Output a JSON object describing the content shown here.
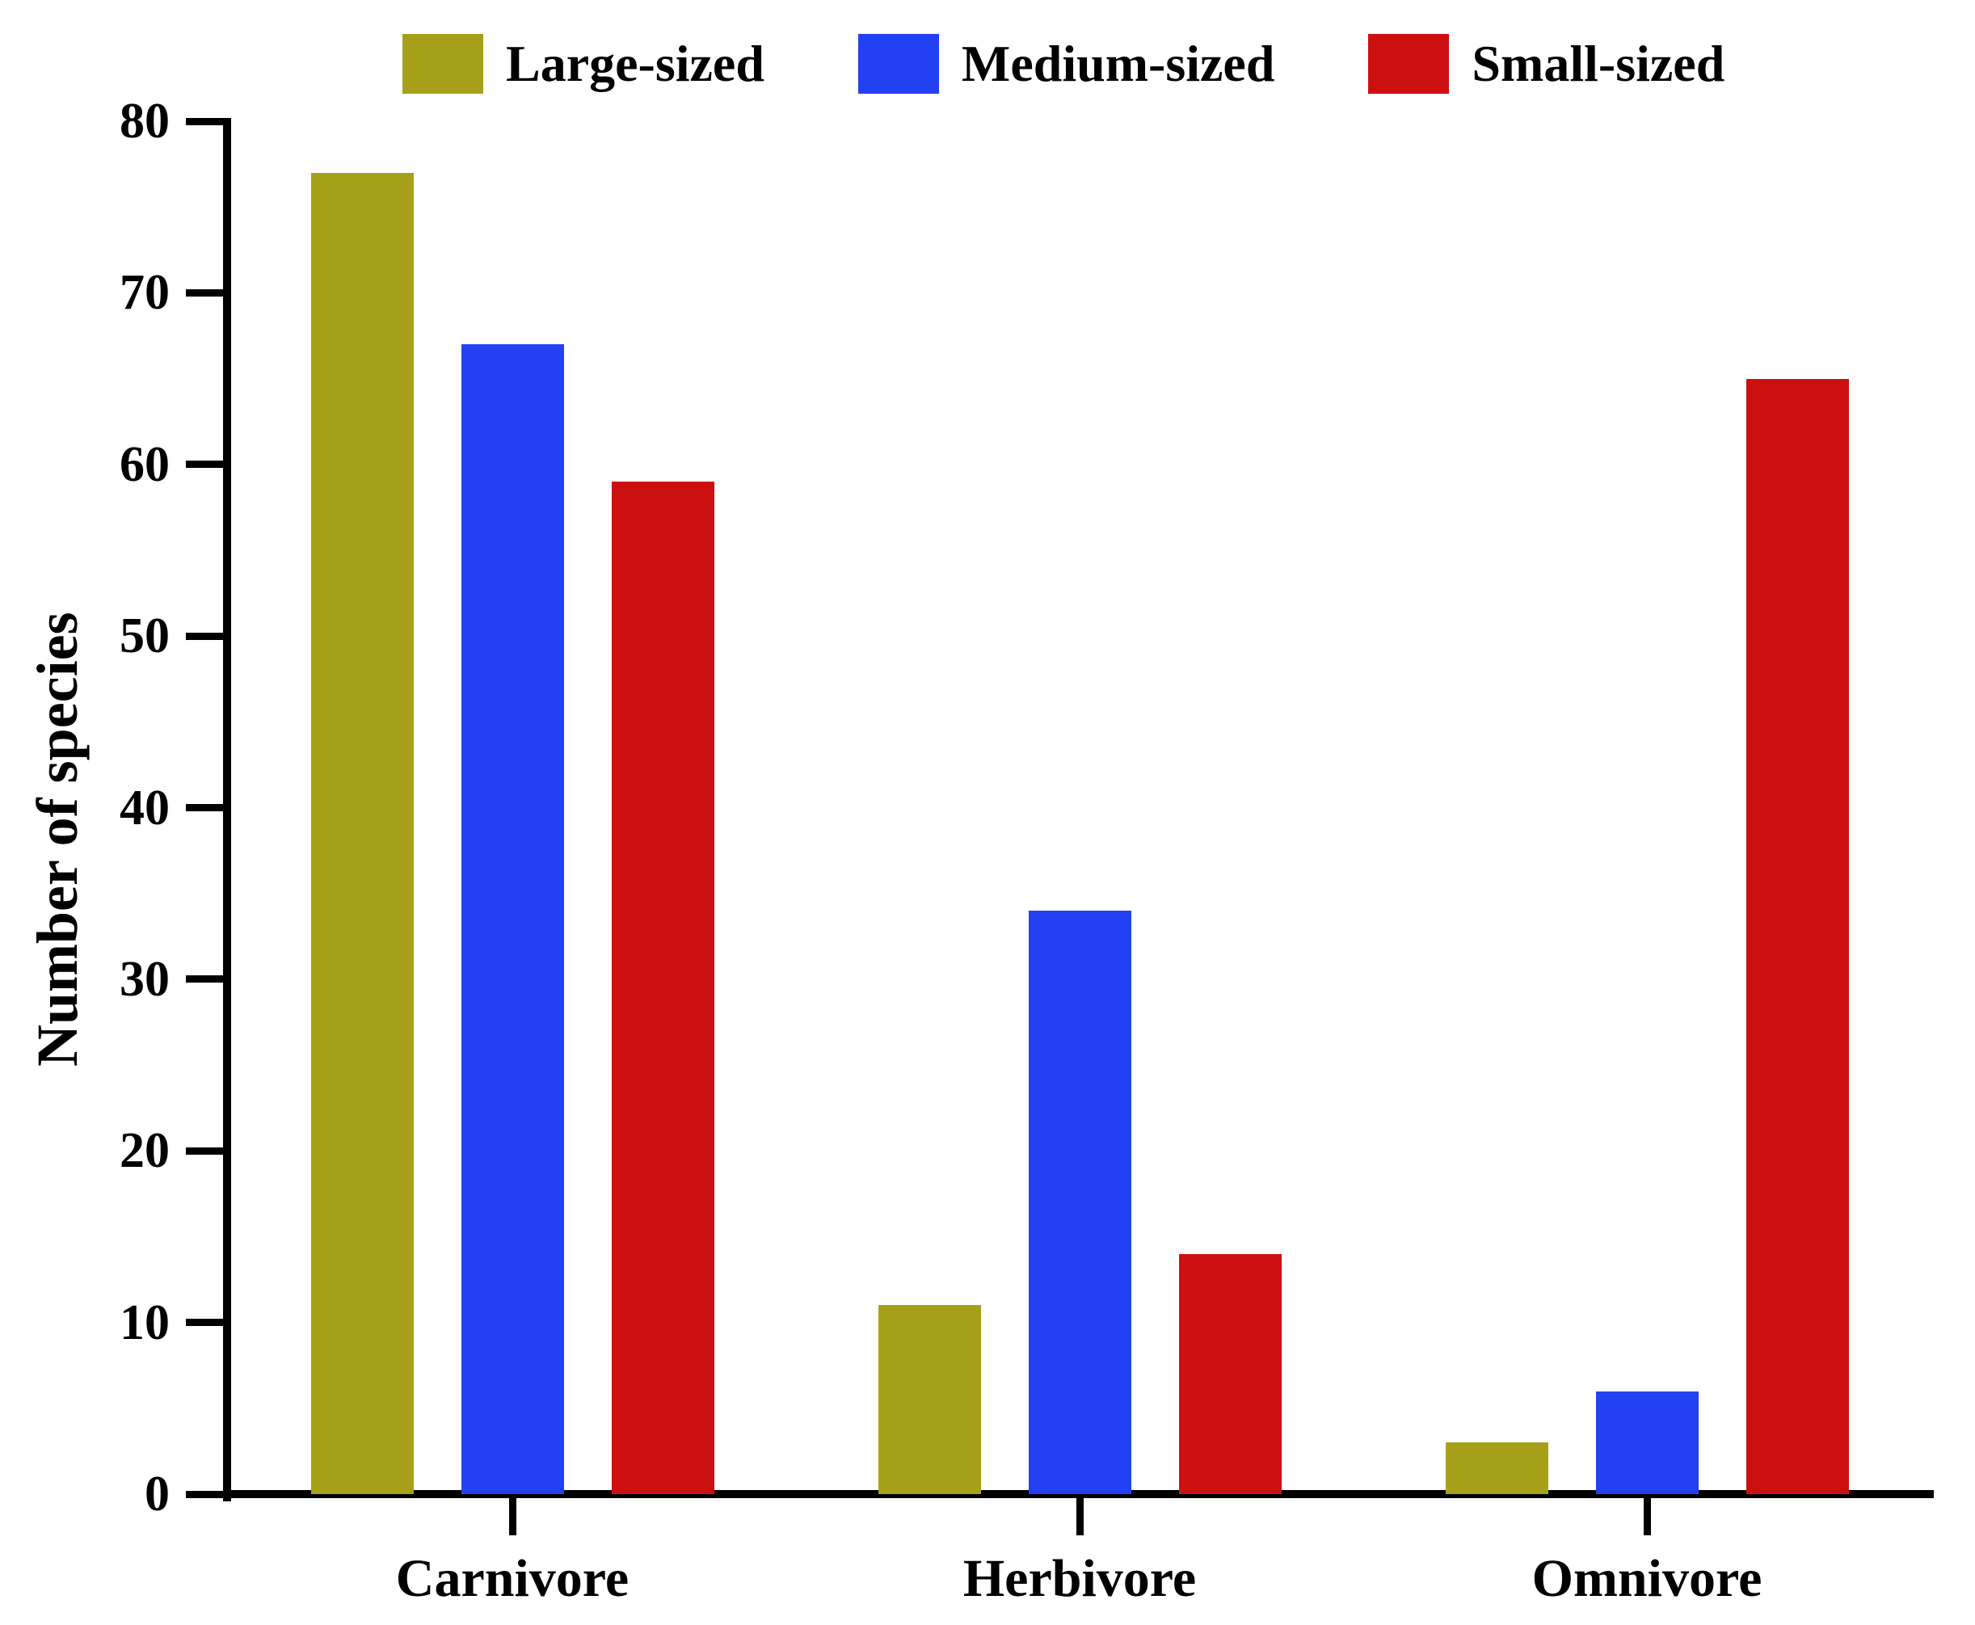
{
  "chart_data": {
    "type": "bar",
    "title": "",
    "xlabel": "",
    "ylabel": "Number of species",
    "ylim": [
      0,
      80
    ],
    "ytick_step": 10,
    "ytick_labels": [
      "0",
      "10",
      "20",
      "30",
      "40",
      "50",
      "60",
      "70",
      "80"
    ],
    "grid": false,
    "legend_position": "top",
    "categories": [
      "Carnivore",
      "Herbivore",
      "Omnivore"
    ],
    "series": [
      {
        "name": "Large-sized",
        "color": "#A6A019",
        "values": [
          77,
          11,
          3
        ]
      },
      {
        "name": "Medium-sized",
        "color": "#2341F2",
        "values": [
          67,
          34,
          6
        ]
      },
      {
        "name": "Small-sized",
        "color": "#CC1010",
        "values": [
          59,
          14,
          65
        ]
      }
    ]
  }
}
